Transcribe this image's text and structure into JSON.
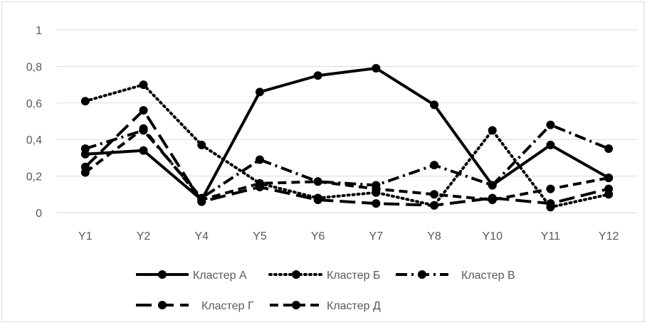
{
  "chart_data": {
    "type": "line",
    "categories": [
      "Y1",
      "Y2",
      "Y4",
      "Y5",
      "Y6",
      "Y7",
      "Y8",
      "Y10",
      "Y11",
      "Y12"
    ],
    "ylim": [
      0,
      1
    ],
    "y_ticks": [
      "0",
      "0,2",
      "0,4",
      "0,6",
      "0,8",
      "1"
    ],
    "y_tick_values": [
      0,
      0.2,
      0.4,
      0.6,
      0.8,
      1
    ],
    "grid": true,
    "legend_position": "bottom",
    "series": [
      {
        "name": "Кластер А",
        "style": "solid",
        "values": [
          0.32,
          0.34,
          0.07,
          0.66,
          0.75,
          0.79,
          0.59,
          0.15,
          0.37,
          0.19
        ]
      },
      {
        "name": "Кластер Б",
        "style": "dotted",
        "values": [
          0.61,
          0.7,
          0.37,
          0.16,
          0.08,
          0.11,
          0.04,
          0.45,
          0.03,
          0.1
        ]
      },
      {
        "name": "Кластер В",
        "style": "dash-dot",
        "values": [
          0.35,
          0.45,
          0.08,
          0.29,
          0.17,
          0.15,
          0.26,
          0.15,
          0.48,
          0.35
        ]
      },
      {
        "name": "Кластер Г",
        "style": "long-dash",
        "values": [
          0.25,
          0.56,
          0.06,
          0.14,
          0.07,
          0.05,
          0.04,
          0.08,
          0.05,
          0.13
        ]
      },
      {
        "name": "Кластер Д",
        "style": "dash",
        "values": [
          0.22,
          0.46,
          0.07,
          0.16,
          0.17,
          0.13,
          0.1,
          0.07,
          0.13,
          0.19
        ]
      }
    ],
    "line_color": "#000000",
    "grid_color": "#d9d9d9",
    "text_color": "#595959"
  }
}
